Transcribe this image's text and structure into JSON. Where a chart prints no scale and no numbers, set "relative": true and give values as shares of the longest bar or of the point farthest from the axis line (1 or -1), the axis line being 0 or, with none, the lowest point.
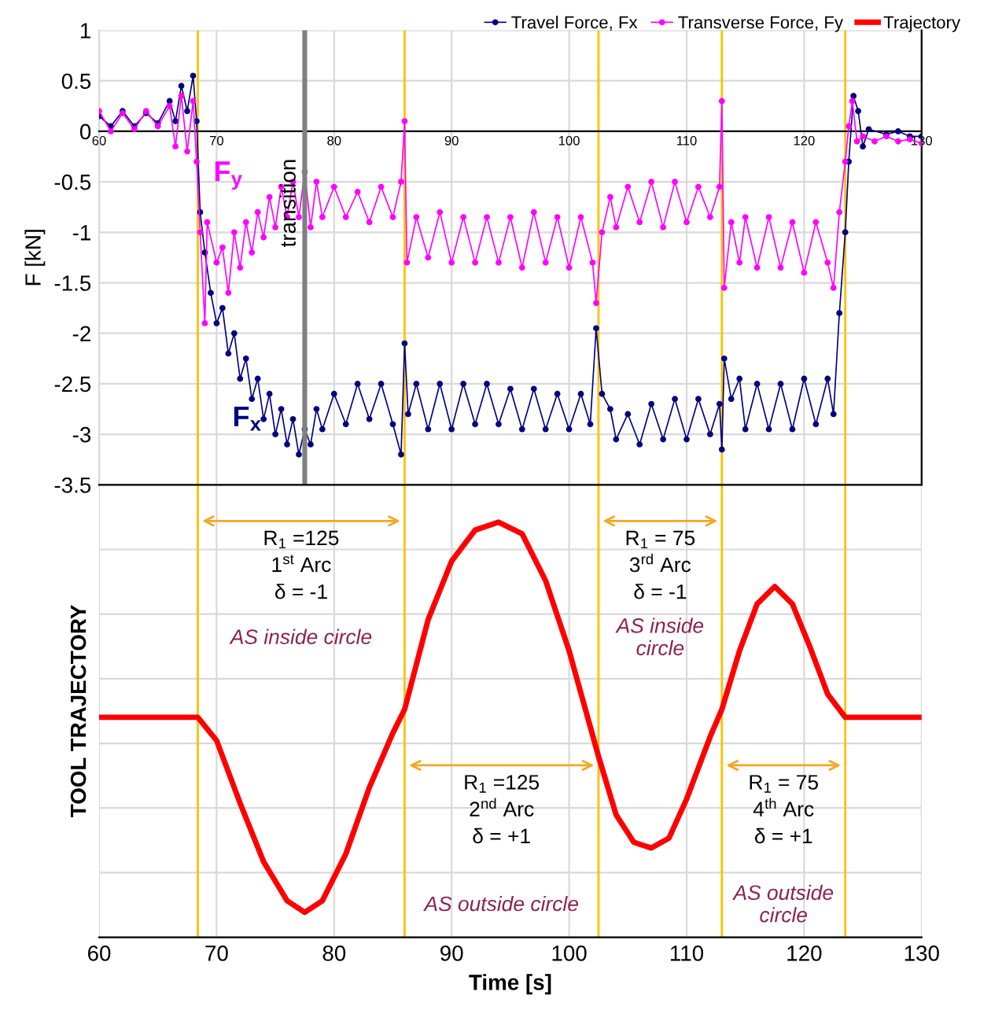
{
  "chart_data": [
    {
      "type": "line",
      "ylabel": "F [kN]",
      "xlim": [
        60,
        130
      ],
      "ylim": [
        -3.5,
        1
      ],
      "xticks": [
        60,
        70,
        80,
        90,
        100,
        110,
        120,
        130
      ],
      "yticks": [
        1,
        0.5,
        0,
        -0.5,
        -1,
        -1.5,
        -2,
        -2.5,
        -3,
        -3.5
      ],
      "grid": true,
      "legend": "top right",
      "marker": "circle",
      "series": [
        {
          "name": "Travel Force, Fx",
          "color": "#000080",
          "x": [
            60,
            61,
            62,
            63,
            64,
            65,
            66,
            66.5,
            67,
            67.5,
            68,
            68.3,
            68.6,
            69,
            69.5,
            70,
            70.5,
            71,
            71.5,
            72,
            72.5,
            73,
            73.5,
            74,
            74.5,
            75,
            75.5,
            76,
            76.5,
            77,
            77.5,
            78,
            78.5,
            79,
            80,
            81,
            82,
            83,
            84,
            85,
            85.7,
            86,
            86.3,
            87,
            88,
            89,
            90,
            91,
            92,
            93,
            94,
            95,
            96,
            97,
            98,
            99,
            100,
            101,
            101.8,
            102.3,
            102.8,
            103.5,
            104,
            105,
            106,
            107,
            108,
            109,
            110,
            111,
            112,
            112.8,
            113,
            113.2,
            113.8,
            114.5,
            115,
            116,
            117,
            118,
            119,
            120,
            121,
            122,
            122.5,
            123,
            123.5,
            123.8,
            124.2,
            124.6,
            125,
            125.5,
            127,
            128,
            129,
            130
          ],
          "values": [
            0.15,
            0.05,
            0.2,
            0.05,
            0.18,
            0.08,
            0.3,
            0.1,
            0.45,
            0.2,
            0.55,
            0.1,
            -0.8,
            -1.2,
            -1.6,
            -1.9,
            -1.75,
            -2.2,
            -2.0,
            -2.45,
            -2.25,
            -2.65,
            -2.45,
            -2.85,
            -2.6,
            -3.0,
            -2.75,
            -3.1,
            -2.85,
            -3.2,
            -2.95,
            -3.1,
            -2.75,
            -2.95,
            -2.6,
            -2.9,
            -2.5,
            -2.85,
            -2.5,
            -2.9,
            -3.2,
            -2.1,
            -2.8,
            -2.5,
            -2.95,
            -2.5,
            -2.95,
            -2.5,
            -2.9,
            -2.5,
            -2.9,
            -2.55,
            -2.95,
            -2.55,
            -2.95,
            -2.6,
            -2.95,
            -2.6,
            -2.9,
            -1.95,
            -2.6,
            -2.75,
            -3.05,
            -2.8,
            -3.1,
            -2.7,
            -3.05,
            -2.65,
            -3.05,
            -2.65,
            -3.0,
            -2.7,
            -3.15,
            -2.25,
            -2.65,
            -2.45,
            -2.95,
            -2.5,
            -2.95,
            -2.5,
            -2.95,
            -2.45,
            -2.9,
            -2.45,
            -2.8,
            -1.8,
            -1.0,
            -0.3,
            0.35,
            0.2,
            -0.15,
            0.02,
            -0.03,
            0.0,
            -0.05,
            -0.05
          ]
        },
        {
          "name": "Transverse Force, Fy",
          "color": "#ff00ff",
          "x": [
            60,
            61,
            62,
            63,
            64,
            65,
            66,
            66.5,
            67,
            67.5,
            68,
            68.3,
            68.6,
            69,
            69.2,
            70,
            70.5,
            71,
            71.5,
            72,
            72.5,
            73,
            73.5,
            74,
            74.5,
            75,
            75.5,
            76,
            76.5,
            77,
            77.5,
            78,
            78.5,
            79,
            80,
            81,
            82,
            83,
            84,
            85,
            85.7,
            86,
            86.2,
            87,
            88,
            89,
            90,
            91,
            92,
            93,
            94,
            95,
            96,
            97,
            98,
            99,
            100,
            101,
            102,
            102.3,
            102.8,
            103.5,
            104,
            105,
            106,
            107,
            108,
            109,
            110,
            111,
            112,
            112.8,
            113,
            113.2,
            113.8,
            114.5,
            115,
            116,
            117,
            118,
            119,
            120,
            121,
            122,
            122.5,
            123,
            123.5,
            123.8,
            124.1,
            124.5,
            125,
            126,
            127,
            128,
            129,
            130
          ],
          "values": [
            0.2,
            0.0,
            0.18,
            0.02,
            0.2,
            0.05,
            0.25,
            -0.15,
            0.35,
            -0.2,
            0.3,
            -0.3,
            -1.0,
            -1.9,
            -0.9,
            -1.3,
            -1.15,
            -1.6,
            -1.0,
            -1.35,
            -0.9,
            -1.2,
            -0.8,
            -1.05,
            -0.65,
            -0.95,
            -0.55,
            -0.85,
            -0.5,
            -0.85,
            -0.4,
            -0.95,
            -0.5,
            -0.85,
            -0.55,
            -0.85,
            -0.6,
            -0.9,
            -0.55,
            -0.85,
            -0.5,
            0.1,
            -1.3,
            -0.85,
            -1.25,
            -0.8,
            -1.3,
            -0.85,
            -1.3,
            -0.85,
            -1.3,
            -0.85,
            -1.35,
            -0.8,
            -1.3,
            -0.85,
            -1.35,
            -0.85,
            -1.3,
            -1.7,
            -1.0,
            -0.65,
            -0.95,
            -0.55,
            -0.9,
            -0.5,
            -0.95,
            -0.5,
            -0.9,
            -0.55,
            -0.85,
            -0.55,
            0.3,
            -1.55,
            -0.9,
            -1.3,
            -0.85,
            -1.35,
            -0.85,
            -1.35,
            -0.9,
            -1.4,
            -0.9,
            -1.3,
            -1.55,
            -0.8,
            -0.3,
            0.05,
            0.3,
            -0.1,
            -0.05,
            -0.1,
            -0.05,
            -0.1,
            -0.08,
            -0.12
          ]
        }
      ],
      "ref_lines": [
        {
          "axis": "x",
          "value": 77.5,
          "label": "transition",
          "color": "#808080"
        },
        {
          "axis": "x",
          "value": 68.4,
          "color": "#ffc000"
        },
        {
          "axis": "x",
          "value": 86,
          "color": "#ffc000"
        },
        {
          "axis": "x",
          "value": 102.5,
          "color": "#ffc000"
        },
        {
          "axis": "x",
          "value": 113,
          "color": "#ffc000"
        },
        {
          "axis": "x",
          "value": 123.5,
          "color": "#ffc000"
        }
      ],
      "annotations": [
        "F$_{x}$",
        "F$_{y}$"
      ]
    },
    {
      "type": "line",
      "relative": true,
      "ylabel": "TOOL TRAJECTORY",
      "xlabel": "Time [s]",
      "xlim": [
        60,
        130
      ],
      "xticks": [
        60,
        70,
        80,
        90,
        100,
        110,
        120,
        130
      ],
      "grid": true,
      "legend": "top right",
      "tick_labels": "x",
      "series": [
        {
          "name": "Trajectory",
          "color": "#ff0000",
          "x": [
            60,
            68.4,
            70,
            72,
            74,
            76,
            77.5,
            79,
            81,
            83,
            85,
            86,
            88,
            90,
            92,
            94,
            96,
            98,
            100,
            102.5,
            104,
            105.5,
            107,
            108.5,
            110,
            112,
            113,
            114.5,
            116,
            117.5,
            119,
            120.5,
            122,
            123.5,
            125,
            130
          ],
          "values": [
            0.53,
            0.53,
            0.474,
            0.323,
            0.182,
            0.088,
            0.06,
            0.088,
            0.201,
            0.361,
            0.492,
            0.549,
            0.765,
            0.906,
            0.981,
            1,
            0.972,
            0.859,
            0.69,
            0.436,
            0.295,
            0.229,
            0.215,
            0.239,
            0.333,
            0.483,
            0.549,
            0.69,
            0.803,
            0.845,
            0.803,
            0.699,
            0.586,
            0.53,
            0.53,
            0.53
          ]
        }
      ],
      "ref_lines": [
        {
          "axis": "x",
          "value": 68.4,
          "color": "#ffc000"
        },
        {
          "axis": "x",
          "value": 86,
          "color": "#ffc000"
        },
        {
          "axis": "x",
          "value": 102.5,
          "color": "#ffc000"
        },
        {
          "axis": "x",
          "value": 113,
          "color": "#ffc000"
        },
        {
          "axis": "x",
          "value": 123.5,
          "color": "#ffc000"
        }
      ],
      "annotations": [
        "R$_{1}$ =125\n1$^{st}$ Arc\nδ = -1",
        "R$_{1}$ =125\n2$^{nd}$ Arc\nδ = +1",
        "R$_{1}$ = 75\n3$^{rd}$ Arc\nδ = -1",
        "R$_{1}$ = 75\n4$^{th}$ Arc\nδ = +1",
        "AS inside circle",
        "AS outside circle",
        "AS inside\ncircle",
        "AS outside\ncircle"
      ]
    }
  ]
}
